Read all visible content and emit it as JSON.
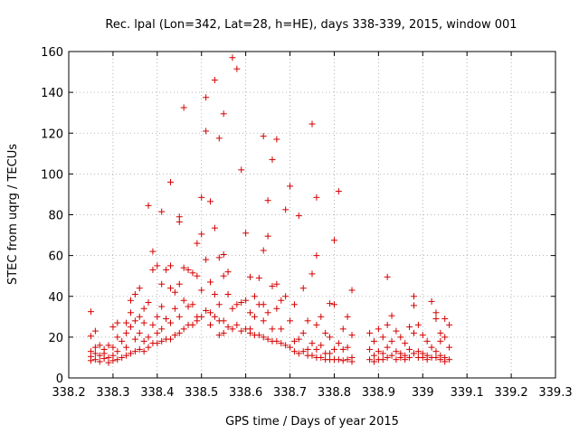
{
  "chart_data": {
    "type": "scatter",
    "title": "Rec. lpal (Lon=342, Lat=28, h=HE), days 338-339, 2015, window 001",
    "xlabel": "GPS time / Days of year 2015",
    "ylabel": "STEC from uqrg / TECUs",
    "xlim": [
      338.2,
      339.3
    ],
    "ylim": [
      0,
      160
    ],
    "xticks": [
      338.2,
      338.3,
      338.4,
      338.5,
      338.6,
      338.7,
      338.8,
      338.9,
      339,
      339.1,
      339.2,
      339.3
    ],
    "xtick_labels": [
      "338.2",
      "338.3",
      "338.4",
      "338.5",
      "338.6",
      "338.7",
      "338.8",
      "338.9",
      "339",
      "339.1",
      "339.2",
      "339.3"
    ],
    "yticks": [
      0,
      20,
      40,
      60,
      80,
      100,
      120,
      140,
      160
    ],
    "ytick_labels": [
      "0",
      "20",
      "40",
      "60",
      "80",
      "100",
      "120",
      "140",
      "160"
    ],
    "grid": true,
    "marker": "plus",
    "color": "#d40000",
    "series": [
      {
        "points": [
          [
            338.25,
            32.5
          ],
          [
            338.25,
            20.5
          ],
          [
            338.25,
            13
          ],
          [
            338.25,
            10.5
          ],
          [
            338.25,
            8.5
          ],
          [
            338.26,
            23
          ],
          [
            338.26,
            15
          ],
          [
            338.26,
            12
          ],
          [
            338.26,
            9
          ],
          [
            338.27,
            16
          ],
          [
            338.27,
            11
          ],
          [
            338.27,
            8
          ],
          [
            338.28,
            14
          ],
          [
            338.28,
            12
          ],
          [
            338.28,
            9.5
          ],
          [
            338.29,
            16
          ],
          [
            338.29,
            10
          ],
          [
            338.29,
            7.5
          ],
          [
            338.3,
            25
          ],
          [
            338.3,
            15
          ],
          [
            338.3,
            11
          ],
          [
            338.3,
            8.5
          ],
          [
            338.31,
            27
          ],
          [
            338.31,
            20
          ],
          [
            338.31,
            13
          ],
          [
            338.31,
            9
          ],
          [
            338.32,
            18
          ],
          [
            338.32,
            10
          ],
          [
            338.33,
            27
          ],
          [
            338.33,
            22
          ],
          [
            338.33,
            15
          ],
          [
            338.33,
            11
          ],
          [
            338.34,
            38
          ],
          [
            338.34,
            32
          ],
          [
            338.34,
            25
          ],
          [
            338.34,
            12
          ],
          [
            338.35,
            41
          ],
          [
            338.35,
            28
          ],
          [
            338.35,
            19
          ],
          [
            338.35,
            13
          ],
          [
            338.36,
            44
          ],
          [
            338.36,
            30
          ],
          [
            338.36,
            22
          ],
          [
            338.36,
            14
          ],
          [
            338.37,
            34
          ],
          [
            338.37,
            27
          ],
          [
            338.37,
            18
          ],
          [
            338.37,
            13
          ],
          [
            338.38,
            84.5
          ],
          [
            338.38,
            37
          ],
          [
            338.38,
            20
          ],
          [
            338.38,
            15
          ],
          [
            338.39,
            62
          ],
          [
            338.39,
            53
          ],
          [
            338.39,
            26
          ],
          [
            338.39,
            17
          ],
          [
            338.4,
            55
          ],
          [
            338.4,
            30
          ],
          [
            338.4,
            22
          ],
          [
            338.4,
            17
          ],
          [
            338.41,
            81.5
          ],
          [
            338.41,
            46
          ],
          [
            338.41,
            35
          ],
          [
            338.41,
            24
          ],
          [
            338.41,
            18
          ],
          [
            338.42,
            53
          ],
          [
            338.42,
            29
          ],
          [
            338.42,
            19
          ],
          [
            338.43,
            96
          ],
          [
            338.43,
            55
          ],
          [
            338.43,
            44
          ],
          [
            338.43,
            27
          ],
          [
            338.43,
            19
          ],
          [
            338.44,
            42
          ],
          [
            338.44,
            34
          ],
          [
            338.44,
            21
          ],
          [
            338.45,
            79
          ],
          [
            338.45,
            76.5
          ],
          [
            338.45,
            46
          ],
          [
            338.45,
            30
          ],
          [
            338.45,
            22
          ],
          [
            338.46,
            132.5
          ],
          [
            338.46,
            54
          ],
          [
            338.46,
            38
          ],
          [
            338.46,
            24
          ],
          [
            338.47,
            53
          ],
          [
            338.47,
            35
          ],
          [
            338.47,
            26
          ],
          [
            338.48,
            51.5
          ],
          [
            338.48,
            36
          ],
          [
            338.48,
            26
          ],
          [
            338.49,
            66
          ],
          [
            338.49,
            50
          ],
          [
            338.49,
            30
          ],
          [
            338.49,
            28
          ],
          [
            338.5,
            88.5
          ],
          [
            338.5,
            70.5
          ],
          [
            338.5,
            43
          ],
          [
            338.5,
            30
          ],
          [
            338.51,
            137.5
          ],
          [
            338.51,
            121
          ],
          [
            338.51,
            58
          ],
          [
            338.51,
            33
          ],
          [
            338.52,
            86.5
          ],
          [
            338.52,
            47
          ],
          [
            338.52,
            32
          ],
          [
            338.52,
            26
          ],
          [
            338.53,
            146
          ],
          [
            338.53,
            73.5
          ],
          [
            338.53,
            41
          ],
          [
            338.53,
            30
          ],
          [
            338.54,
            117.5
          ],
          [
            338.54,
            59
          ],
          [
            338.54,
            36
          ],
          [
            338.54,
            28
          ],
          [
            338.54,
            21
          ],
          [
            338.55,
            129.5
          ],
          [
            338.55,
            60.5
          ],
          [
            338.55,
            50
          ],
          [
            338.55,
            28
          ],
          [
            338.55,
            22
          ],
          [
            338.56,
            52
          ],
          [
            338.56,
            41
          ],
          [
            338.56,
            25
          ],
          [
            338.57,
            157
          ],
          [
            338.57,
            34
          ],
          [
            338.57,
            24
          ],
          [
            338.58,
            151.5
          ],
          [
            338.58,
            36
          ],
          [
            338.58,
            26
          ],
          [
            338.59,
            102
          ],
          [
            338.59,
            37
          ],
          [
            338.59,
            23
          ],
          [
            338.6,
            71
          ],
          [
            338.6,
            38
          ],
          [
            338.6,
            24
          ],
          [
            338.61,
            49.5
          ],
          [
            338.61,
            32
          ],
          [
            338.61,
            24
          ],
          [
            338.61,
            22
          ],
          [
            338.62,
            40
          ],
          [
            338.62,
            30
          ],
          [
            338.62,
            21
          ],
          [
            338.63,
            49
          ],
          [
            338.63,
            36
          ],
          [
            338.63,
            21
          ],
          [
            338.64,
            118.5
          ],
          [
            338.64,
            62.5
          ],
          [
            338.64,
            36
          ],
          [
            338.64,
            28
          ],
          [
            338.64,
            20
          ],
          [
            338.65,
            87
          ],
          [
            338.65,
            69.5
          ],
          [
            338.65,
            32
          ],
          [
            338.65,
            19
          ],
          [
            338.66,
            107
          ],
          [
            338.66,
            45
          ],
          [
            338.66,
            24
          ],
          [
            338.66,
            18
          ],
          [
            338.67,
            117
          ],
          [
            338.67,
            46
          ],
          [
            338.67,
            34
          ],
          [
            338.67,
            18
          ],
          [
            338.68,
            38
          ],
          [
            338.68,
            24
          ],
          [
            338.68,
            17
          ],
          [
            338.69,
            82.5
          ],
          [
            338.69,
            40
          ],
          [
            338.69,
            16
          ],
          [
            338.7,
            94
          ],
          [
            338.7,
            28
          ],
          [
            338.7,
            15
          ],
          [
            338.71,
            36
          ],
          [
            338.71,
            18
          ],
          [
            338.71,
            13
          ],
          [
            338.72,
            79.5
          ],
          [
            338.72,
            19
          ],
          [
            338.72,
            12
          ],
          [
            338.73,
            44
          ],
          [
            338.73,
            22
          ],
          [
            338.73,
            13
          ],
          [
            338.74,
            28
          ],
          [
            338.74,
            14
          ],
          [
            338.74,
            11
          ],
          [
            338.75,
            124.5
          ],
          [
            338.75,
            51
          ],
          [
            338.75,
            17
          ],
          [
            338.75,
            11
          ],
          [
            338.76,
            88.5
          ],
          [
            338.76,
            60
          ],
          [
            338.76,
            26
          ],
          [
            338.76,
            14
          ],
          [
            338.76,
            10
          ],
          [
            338.77,
            30
          ],
          [
            338.77,
            16
          ],
          [
            338.77,
            10
          ],
          [
            338.78,
            22
          ],
          [
            338.78,
            12
          ],
          [
            338.78,
            9
          ],
          [
            338.79,
            36.5
          ],
          [
            338.79,
            20
          ],
          [
            338.79,
            12
          ],
          [
            338.79,
            9
          ],
          [
            338.8,
            67.5
          ],
          [
            338.8,
            36
          ],
          [
            338.8,
            14
          ],
          [
            338.8,
            9
          ],
          [
            338.81,
            91.5
          ],
          [
            338.81,
            17
          ],
          [
            338.81,
            9
          ],
          [
            338.82,
            24
          ],
          [
            338.82,
            14
          ],
          [
            338.82,
            8.5
          ],
          [
            338.83,
            30
          ],
          [
            338.83,
            15
          ],
          [
            338.83,
            9
          ],
          [
            338.84,
            43
          ],
          [
            338.84,
            21
          ],
          [
            338.84,
            10
          ],
          [
            338.84,
            8
          ],
          [
            338.88,
            22
          ],
          [
            338.88,
            14
          ],
          [
            338.88,
            9
          ],
          [
            338.89,
            18
          ],
          [
            338.89,
            11
          ],
          [
            338.89,
            8
          ],
          [
            338.9,
            24
          ],
          [
            338.9,
            13
          ],
          [
            338.9,
            9
          ],
          [
            338.91,
            20
          ],
          [
            338.91,
            12
          ],
          [
            338.91,
            9
          ],
          [
            338.92,
            49.5
          ],
          [
            338.92,
            26
          ],
          [
            338.92,
            15
          ],
          [
            338.92,
            10
          ],
          [
            338.93,
            30.5
          ],
          [
            338.93,
            18
          ],
          [
            338.93,
            11
          ],
          [
            338.94,
            23
          ],
          [
            338.94,
            13
          ],
          [
            338.94,
            9
          ],
          [
            338.95,
            20
          ],
          [
            338.95,
            12
          ],
          [
            338.95,
            10
          ],
          [
            338.96,
            17
          ],
          [
            338.96,
            11
          ],
          [
            338.96,
            9
          ],
          [
            338.97,
            25
          ],
          [
            338.97,
            14
          ],
          [
            338.97,
            10
          ],
          [
            338.98,
            40
          ],
          [
            338.98,
            35.5
          ],
          [
            338.98,
            22
          ],
          [
            338.98,
            12
          ],
          [
            338.99,
            26
          ],
          [
            338.99,
            13
          ],
          [
            338.99,
            10
          ],
          [
            339.0,
            21
          ],
          [
            339.0,
            12
          ],
          [
            339.0,
            10
          ],
          [
            339.01,
            18
          ],
          [
            339.01,
            11
          ],
          [
            339.01,
            9
          ],
          [
            339.02,
            37.5
          ],
          [
            339.02,
            15
          ],
          [
            339.02,
            10
          ],
          [
            339.03,
            32
          ],
          [
            339.03,
            29
          ],
          [
            339.03,
            13
          ],
          [
            339.03,
            10
          ],
          [
            339.04,
            22
          ],
          [
            339.04,
            18
          ],
          [
            339.04,
            11
          ],
          [
            339.04,
            9
          ],
          [
            339.05,
            29
          ],
          [
            339.05,
            20
          ],
          [
            339.05,
            10
          ],
          [
            339.05,
            8
          ],
          [
            339.06,
            26
          ],
          [
            339.06,
            15
          ],
          [
            339.06,
            9
          ]
        ]
      }
    ]
  }
}
